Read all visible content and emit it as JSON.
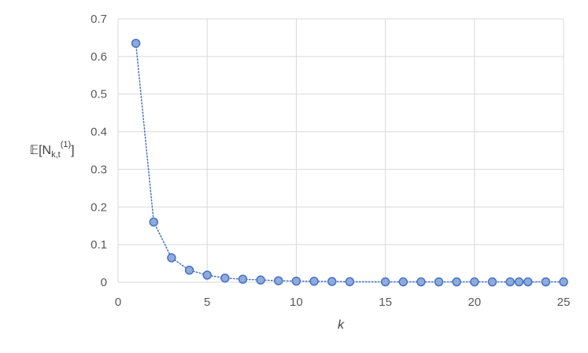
{
  "chart_data": {
    "type": "scatter",
    "title": "",
    "xlabel": "k",
    "ylabel": "𝔼[N_{k,t}^{(1)}]",
    "ylabel_parts": {
      "main": "𝔼[N",
      "sub": "k,t",
      "sup": "(1)",
      "close": "]"
    },
    "xlim": [
      0,
      25
    ],
    "ylim": [
      0,
      0.7
    ],
    "xticks": [
      "0",
      "5",
      "10",
      "15",
      "20",
      "25"
    ],
    "yticks": [
      "0",
      "0.1",
      "0.2",
      "0.3",
      "0.4",
      "0.5",
      "0.6",
      "0.7"
    ],
    "grid": true,
    "series": [
      {
        "name": "E[N_k,t^(1)]",
        "x": [
          1,
          2,
          3,
          4,
          5,
          6,
          7,
          8,
          9,
          10,
          11,
          12,
          13,
          15,
          16,
          17,
          18,
          19,
          20,
          21,
          22,
          22.5,
          23,
          24,
          25
        ],
        "values": [
          0.635,
          0.16,
          0.065,
          0.032,
          0.019,
          0.011,
          0.008,
          0.006,
          0.004,
          0.003,
          0.0025,
          0.002,
          0.0015,
          0.001,
          0.001,
          0.001,
          0.001,
          0.001,
          0.001,
          0.001,
          0.001,
          0.001,
          0.001,
          0.001,
          0.001
        ],
        "color": "#4472c4",
        "marker_fill": "#8faadc"
      }
    ]
  }
}
